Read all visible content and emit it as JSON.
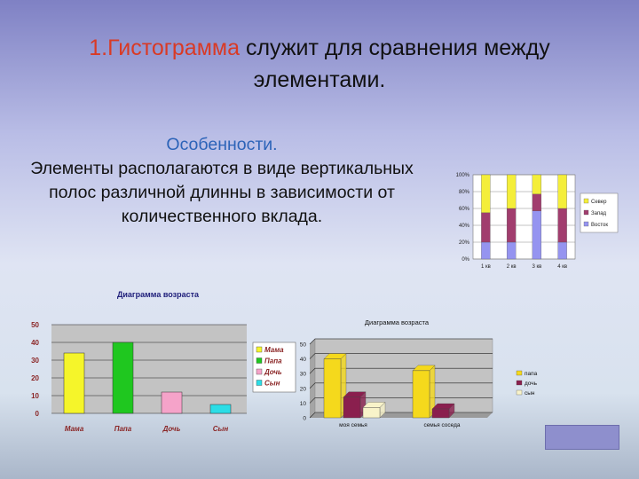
{
  "slide": {
    "title_highlight": "1.Гистограмма",
    "title_rest": " служит для сравнения между элементами.",
    "features_heading": "Особенности.",
    "features_text": "Элементы располагаются в виде вертикальных полос различной длинны в зависимости от количественного вклада."
  },
  "colors": {
    "title_highlight": "#d93a25",
    "features_heading": "#2c63b8",
    "nav_button": "#8e8fcd"
  },
  "chart_data": [
    {
      "type": "bar",
      "subtype": "stacked-100",
      "title": "",
      "categories": [
        "1 кв",
        "2 кв",
        "3 кв",
        "4 кв"
      ],
      "series": [
        {
          "name": "Север",
          "color": "#f4ee3a",
          "values": [
            45,
            40,
            23,
            40
          ]
        },
        {
          "name": "Запад",
          "color": "#a13d6e",
          "values": [
            35,
            40,
            20,
            40
          ]
        },
        {
          "name": "Восток",
          "color": "#9594f0",
          "values": [
            20,
            20,
            57,
            20
          ]
        }
      ],
      "yticks": [
        "0%",
        "20%",
        "40%",
        "60%",
        "80%",
        "100%"
      ],
      "ylim": [
        0,
        100
      ],
      "legend": "right",
      "grid": true
    },
    {
      "type": "bar",
      "title": "Диаграмма возраста",
      "categories": [
        "Мама",
        "Папа",
        "Дочь",
        "Сын"
      ],
      "values": [
        34,
        40,
        12,
        5
      ],
      "colors": [
        "#f5f52a",
        "#1fc71f",
        "#f5a3c9",
        "#2bdde6"
      ],
      "legend_entries": [
        "Мама",
        "Папа",
        "Дочь",
        "Сын"
      ],
      "yticks": [
        "0",
        "10",
        "20",
        "30",
        "40",
        "50"
      ],
      "ylim": [
        0,
        50
      ],
      "legend": "right",
      "grid": true
    },
    {
      "type": "bar",
      "subtype": "3d-clustered",
      "title": "Диаграмма возраста",
      "categories": [
        "моя семья",
        "семья соседа"
      ],
      "series": [
        {
          "name": "папа",
          "color": "#f5d91c",
          "values": [
            40,
            32
          ]
        },
        {
          "name": "дочь",
          "color": "#8a1f4e",
          "values": [
            14,
            6
          ]
        },
        {
          "name": "сын",
          "color": "#f8f3c9",
          "values": [
            7,
            0
          ]
        }
      ],
      "yticks": [
        "0",
        "10",
        "20",
        "30",
        "40",
        "50"
      ],
      "ylim": [
        0,
        50
      ],
      "legend": "right",
      "grid": true
    }
  ]
}
